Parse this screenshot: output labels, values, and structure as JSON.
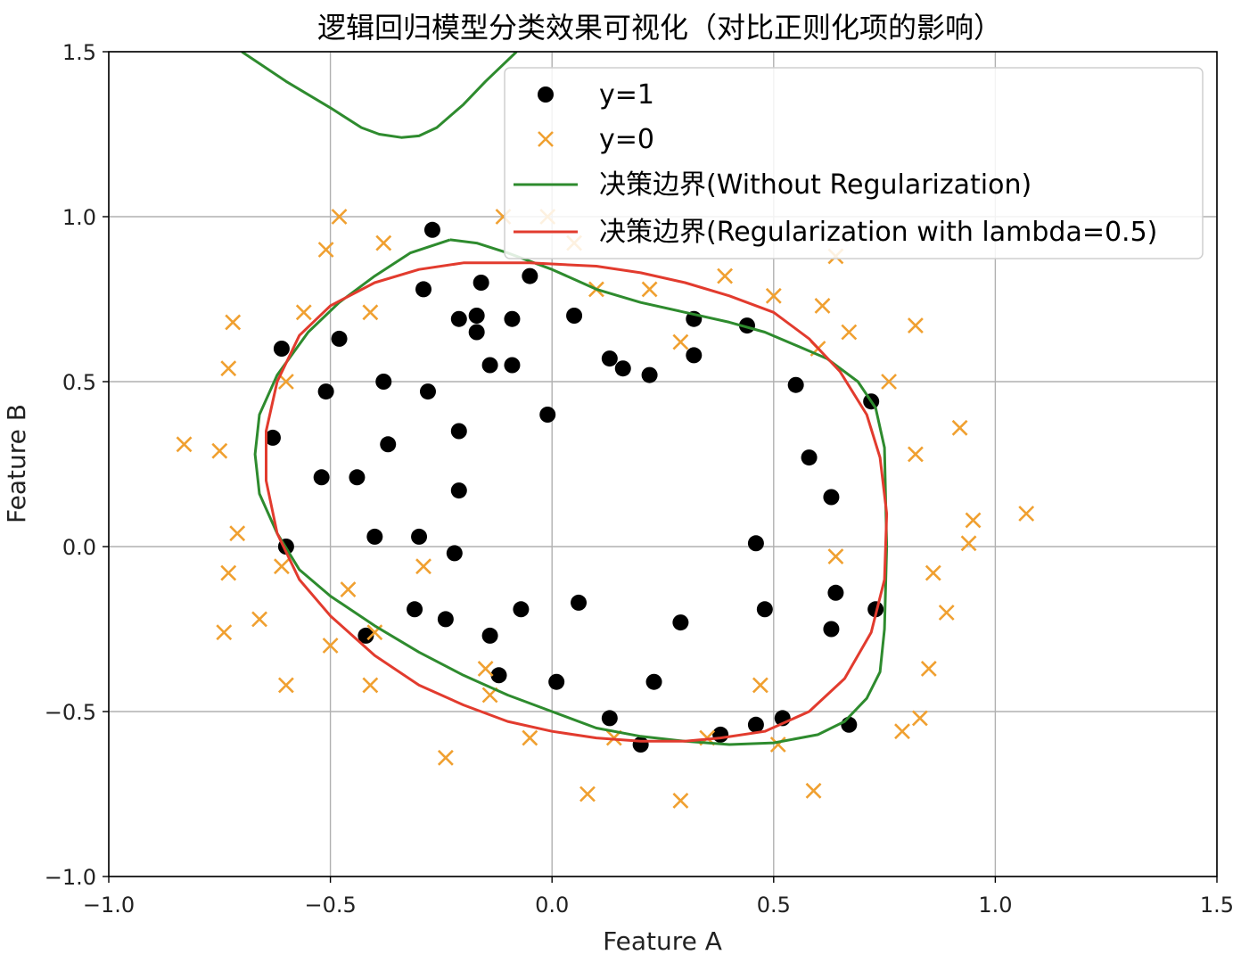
{
  "chart_data": {
    "type": "scatter",
    "title": "逻辑回归模型分类效果可视化（对比正则化项的影响）",
    "xlabel": "Feature A",
    "ylabel": "Feature B",
    "xlim": [
      -1.0,
      1.5
    ],
    "ylim": [
      -1.0,
      1.5
    ],
    "xticks": [
      "−1.0",
      "−0.5",
      "0.0",
      "0.5",
      "1.0",
      "1.5"
    ],
    "yticks": [
      "−1.0",
      "−0.5",
      "0.0",
      "0.5",
      "1.0",
      "1.5"
    ],
    "grid": true,
    "legend_position": "upper-right",
    "colors": {
      "positive": "#000000",
      "negative": "#f0a030",
      "no_reg": "#2e8b2e",
      "reg": "#e23b2e"
    },
    "series": [
      {
        "name": "y=1",
        "kind": "scatter-dot",
        "points": [
          [
            -0.27,
            0.96
          ],
          [
            -0.29,
            0.78
          ],
          [
            -0.16,
            0.8
          ],
          [
            -0.05,
            0.82
          ],
          [
            -0.21,
            0.69
          ],
          [
            -0.17,
            0.7
          ],
          [
            -0.17,
            0.65
          ],
          [
            -0.09,
            0.69
          ],
          [
            0.05,
            0.7
          ],
          [
            -0.14,
            0.55
          ],
          [
            -0.09,
            0.55
          ],
          [
            -0.61,
            0.6
          ],
          [
            -0.48,
            0.63
          ],
          [
            -0.51,
            0.47
          ],
          [
            -0.38,
            0.5
          ],
          [
            -0.28,
            0.47
          ],
          [
            0.13,
            0.57
          ],
          [
            0.16,
            0.54
          ],
          [
            0.22,
            0.52
          ],
          [
            0.32,
            0.69
          ],
          [
            0.32,
            0.58
          ],
          [
            0.44,
            0.67
          ],
          [
            0.55,
            0.49
          ],
          [
            0.72,
            0.44
          ],
          [
            -0.63,
            0.33
          ],
          [
            -0.37,
            0.31
          ],
          [
            -0.21,
            0.35
          ],
          [
            -0.01,
            0.4
          ],
          [
            0.58,
            0.27
          ],
          [
            -0.52,
            0.21
          ],
          [
            -0.44,
            0.21
          ],
          [
            -0.21,
            0.17
          ],
          [
            0.63,
            0.15
          ],
          [
            -0.6,
            0.0
          ],
          [
            -0.4,
            0.03
          ],
          [
            -0.3,
            0.03
          ],
          [
            -0.22,
            -0.02
          ],
          [
            0.46,
            0.01
          ],
          [
            -0.31,
            -0.19
          ],
          [
            -0.24,
            -0.22
          ],
          [
            -0.07,
            -0.19
          ],
          [
            0.06,
            -0.17
          ],
          [
            0.29,
            -0.23
          ],
          [
            0.48,
            -0.19
          ],
          [
            0.64,
            -0.14
          ],
          [
            0.63,
            -0.25
          ],
          [
            0.73,
            -0.19
          ],
          [
            -0.42,
            -0.27
          ],
          [
            -0.14,
            -0.27
          ],
          [
            -0.12,
            -0.39
          ],
          [
            0.01,
            -0.41
          ],
          [
            0.23,
            -0.41
          ],
          [
            0.13,
            -0.52
          ],
          [
            0.2,
            -0.6
          ],
          [
            0.38,
            -0.57
          ],
          [
            0.46,
            -0.54
          ],
          [
            0.52,
            -0.52
          ],
          [
            0.67,
            -0.54
          ]
        ]
      },
      {
        "name": "y=0",
        "kind": "scatter-x",
        "points": [
          [
            -0.83,
            0.31
          ],
          [
            -0.75,
            0.29
          ],
          [
            -0.72,
            0.68
          ],
          [
            -0.73,
            0.54
          ],
          [
            -0.56,
            0.71
          ],
          [
            -0.6,
            0.5
          ],
          [
            -0.51,
            0.9
          ],
          [
            -0.48,
            1.0
          ],
          [
            -0.38,
            0.92
          ],
          [
            -0.41,
            0.71
          ],
          [
            -0.11,
            1.0
          ],
          [
            -0.01,
            1.0
          ],
          [
            0.05,
            0.92
          ],
          [
            0.1,
            0.78
          ],
          [
            0.22,
            0.78
          ],
          [
            0.29,
            0.62
          ],
          [
            0.39,
            0.82
          ],
          [
            0.5,
            0.76
          ],
          [
            0.61,
            0.73
          ],
          [
            0.6,
            0.6
          ],
          [
            0.67,
            0.65
          ],
          [
            0.76,
            0.5
          ],
          [
            0.82,
            0.67
          ],
          [
            0.92,
            0.36
          ],
          [
            0.82,
            0.28
          ],
          [
            0.64,
            0.88
          ],
          [
            -0.71,
            0.04
          ],
          [
            -0.73,
            -0.08
          ],
          [
            -0.61,
            -0.06
          ],
          [
            -0.66,
            -0.22
          ],
          [
            -0.74,
            -0.26
          ],
          [
            -0.6,
            -0.42
          ],
          [
            -0.46,
            -0.13
          ],
          [
            -0.5,
            -0.3
          ],
          [
            -0.41,
            -0.42
          ],
          [
            -0.4,
            -0.26
          ],
          [
            -0.29,
            -0.06
          ],
          [
            -0.15,
            -0.37
          ],
          [
            -0.14,
            -0.45
          ],
          [
            -0.05,
            -0.58
          ],
          [
            -0.24,
            -0.64
          ],
          [
            0.14,
            -0.58
          ],
          [
            0.35,
            -0.58
          ],
          [
            0.47,
            -0.42
          ],
          [
            0.51,
            -0.6
          ],
          [
            0.64,
            -0.03
          ],
          [
            0.86,
            -0.08
          ],
          [
            0.89,
            -0.2
          ],
          [
            0.95,
            0.08
          ],
          [
            0.94,
            0.01
          ],
          [
            1.07,
            0.1
          ],
          [
            0.85,
            -0.37
          ],
          [
            0.83,
            -0.52
          ],
          [
            0.79,
            -0.56
          ],
          [
            0.59,
            -0.74
          ],
          [
            0.29,
            -0.77
          ],
          [
            0.08,
            -0.75
          ]
        ]
      },
      {
        "name": "决策边界(Without Regularization)",
        "kind": "line",
        "segments": [
          [
            [
              -0.7,
              1.5
            ],
            [
              -0.6,
              1.41
            ],
            [
              -0.5,
              1.33
            ],
            [
              -0.43,
              1.27
            ],
            [
              -0.39,
              1.25
            ],
            [
              -0.34,
              1.24
            ],
            [
              -0.3,
              1.245
            ],
            [
              -0.26,
              1.27
            ],
            [
              -0.2,
              1.34
            ],
            [
              -0.15,
              1.41
            ],
            [
              -0.08,
              1.5
            ]
          ],
          [
            [
              -0.23,
              0.93
            ],
            [
              -0.17,
              0.92
            ],
            [
              -0.1,
              0.89
            ],
            [
              0.0,
              0.84
            ],
            [
              0.1,
              0.78
            ],
            [
              0.2,
              0.74
            ],
            [
              0.3,
              0.71
            ],
            [
              0.4,
              0.68
            ],
            [
              0.48,
              0.65
            ],
            [
              0.55,
              0.61
            ],
            [
              0.62,
              0.57
            ],
            [
              0.69,
              0.5
            ],
            [
              0.73,
              0.42
            ],
            [
              0.75,
              0.3
            ],
            [
              0.755,
              0.0
            ],
            [
              0.75,
              -0.25
            ],
            [
              0.74,
              -0.38
            ],
            [
              0.71,
              -0.46
            ],
            [
              0.66,
              -0.53
            ],
            [
              0.6,
              -0.57
            ],
            [
              0.5,
              -0.595
            ],
            [
              0.4,
              -0.6
            ],
            [
              0.3,
              -0.59
            ],
            [
              0.2,
              -0.575
            ],
            [
              0.1,
              -0.55
            ],
            [
              0.0,
              -0.5
            ],
            [
              -0.1,
              -0.45
            ],
            [
              -0.2,
              -0.39
            ],
            [
              -0.3,
              -0.32
            ],
            [
              -0.4,
              -0.24
            ],
            [
              -0.5,
              -0.15
            ],
            [
              -0.57,
              -0.07
            ],
            [
              -0.62,
              0.04
            ],
            [
              -0.66,
              0.16
            ],
            [
              -0.67,
              0.28
            ],
            [
              -0.66,
              0.4
            ],
            [
              -0.62,
              0.52
            ],
            [
              -0.55,
              0.65
            ],
            [
              -0.48,
              0.74
            ],
            [
              -0.4,
              0.82
            ],
            [
              -0.32,
              0.89
            ],
            [
              -0.23,
              0.93
            ]
          ]
        ]
      },
      {
        "name": "决策边界(Regularization with lambda=0.5)",
        "kind": "line",
        "segments": [
          [
            [
              -0.05,
              0.86
            ],
            [
              0.1,
              0.85
            ],
            [
              0.2,
              0.83
            ],
            [
              0.3,
              0.8
            ],
            [
              0.4,
              0.76
            ],
            [
              0.5,
              0.71
            ],
            [
              0.58,
              0.63
            ],
            [
              0.65,
              0.53
            ],
            [
              0.71,
              0.4
            ],
            [
              0.74,
              0.27
            ],
            [
              0.755,
              0.1
            ],
            [
              0.75,
              -0.1
            ],
            [
              0.72,
              -0.26
            ],
            [
              0.66,
              -0.4
            ],
            [
              0.58,
              -0.5
            ],
            [
              0.48,
              -0.56
            ],
            [
              0.38,
              -0.58
            ],
            [
              0.3,
              -0.59
            ],
            [
              0.2,
              -0.59
            ],
            [
              0.1,
              -0.58
            ],
            [
              0.0,
              -0.56
            ],
            [
              -0.1,
              -0.53
            ],
            [
              -0.2,
              -0.48
            ],
            [
              -0.3,
              -0.42
            ],
            [
              -0.4,
              -0.33
            ],
            [
              -0.5,
              -0.21
            ],
            [
              -0.57,
              -0.1
            ],
            [
              -0.62,
              0.04
            ],
            [
              -0.645,
              0.2
            ],
            [
              -0.645,
              0.35
            ],
            [
              -0.62,
              0.5
            ],
            [
              -0.57,
              0.64
            ],
            [
              -0.5,
              0.73
            ],
            [
              -0.4,
              0.8
            ],
            [
              -0.3,
              0.84
            ],
            [
              -0.2,
              0.86
            ],
            [
              -0.05,
              0.86
            ]
          ]
        ]
      }
    ]
  }
}
